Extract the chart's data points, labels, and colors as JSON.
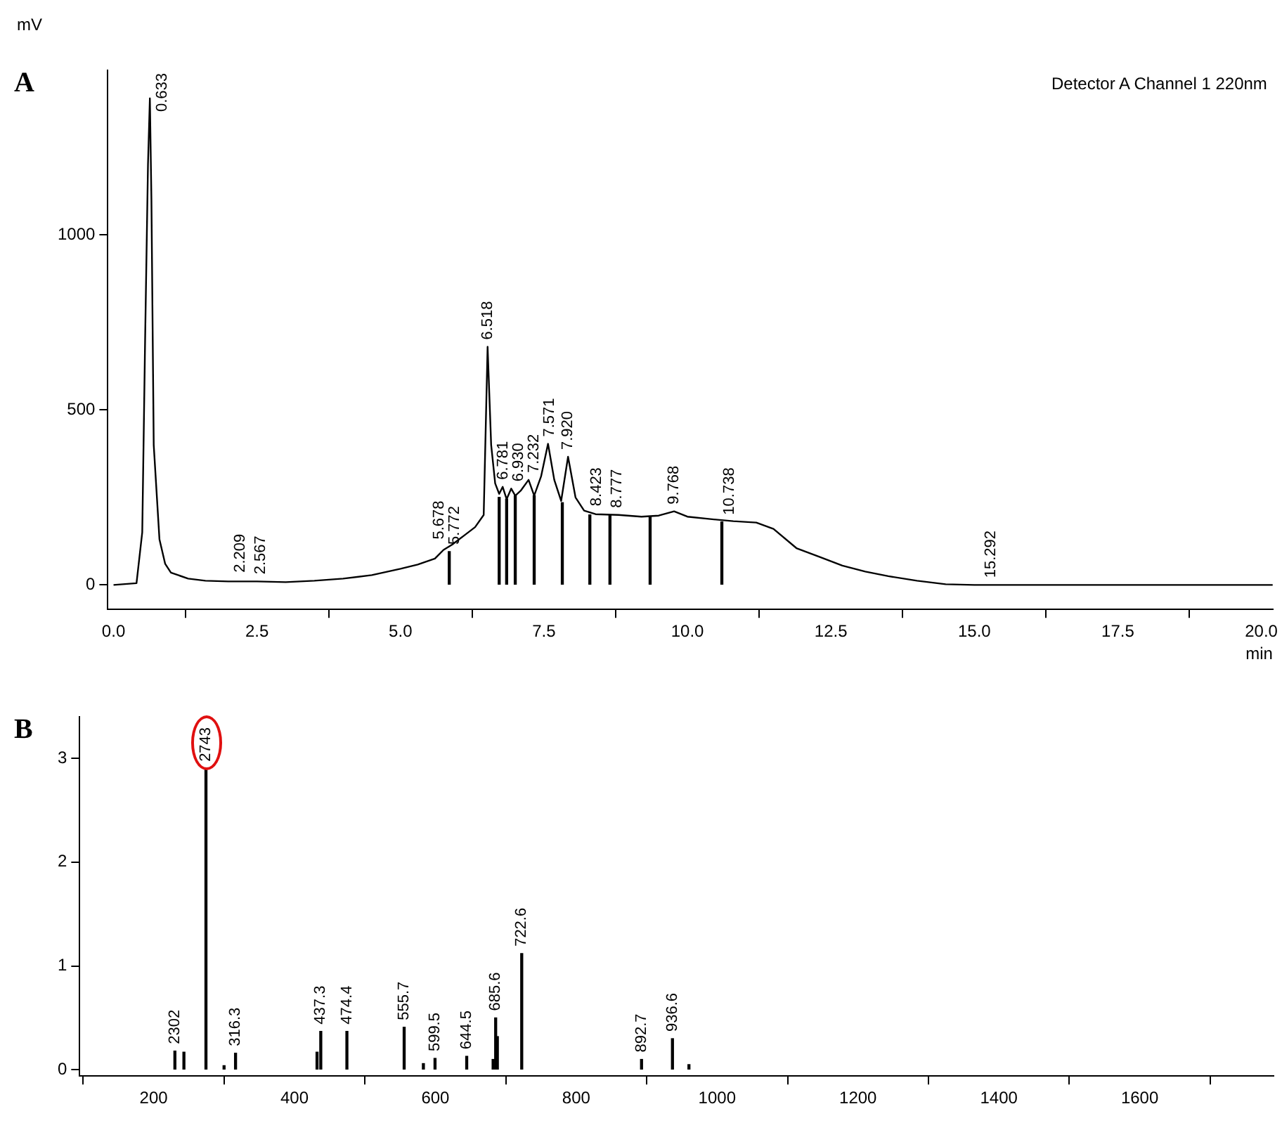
{
  "chart_data": [
    {
      "type": "line",
      "title": "A",
      "xlabel": "min",
      "ylabel": "mV",
      "xlim": [
        -0.1,
        20.2
      ],
      "ylim": [
        -70,
        1470
      ],
      "xticks": [
        {
          "value": 0,
          "label": "0.0"
        },
        {
          "value": 2.5,
          "label": "2.5"
        },
        {
          "value": 5,
          "label": "5.0"
        },
        {
          "value": 7.5,
          "label": "7.5"
        },
        {
          "value": 10,
          "label": "10.0"
        },
        {
          "value": 12.5,
          "label": "12.5"
        },
        {
          "value": 15,
          "label": "15.0"
        },
        {
          "value": 17.5,
          "label": "17.5"
        },
        {
          "value": 20,
          "label": "20.0"
        }
      ],
      "yticks": [
        0,
        500,
        1000
      ],
      "grid": false,
      "legend": false,
      "marker": "none",
      "series": [
        {
          "color": "#000000",
          "x": [
            0,
            0.4,
            0.5,
            0.55,
            0.6,
            0.633,
            0.66,
            0.7,
            0.8,
            0.9,
            1.0,
            1.3,
            1.6,
            2.0,
            2.5,
            3.0,
            3.5,
            4.0,
            4.5,
            5.0,
            5.3,
            5.6,
            5.75,
            5.9,
            6.1,
            6.3,
            6.45,
            6.518,
            6.58,
            6.65,
            6.72,
            6.781,
            6.85,
            6.93,
            7.0,
            7.1,
            7.232,
            7.33,
            7.45,
            7.571,
            7.68,
            7.8,
            7.92,
            8.05,
            8.2,
            8.4,
            8.8,
            9.2,
            9.5,
            9.768,
            10.0,
            10.4,
            10.8,
            11.2,
            11.5,
            11.9,
            12.3,
            12.7,
            13.1,
            13.5,
            14.0,
            14.5,
            15.0,
            16,
            17,
            18,
            19,
            20.2
          ],
          "values": [
            0,
            5,
            150,
            700,
            1200,
            1390,
            1100,
            400,
            130,
            60,
            35,
            18,
            12,
            10,
            10,
            8,
            12,
            18,
            28,
            46,
            58,
            75,
            100,
            115,
            140,
            165,
            200,
            680,
            400,
            290,
            260,
            280,
            245,
            275,
            255,
            270,
            300,
            255,
            310,
            403,
            300,
            240,
            366,
            250,
            212,
            202,
            200,
            195,
            198,
            210,
            195,
            188,
            182,
            178,
            160,
            105,
            80,
            55,
            38,
            25,
            12,
            2,
            0,
            0,
            0,
            0,
            0,
            0
          ]
        },
        {
          "type": "bar",
          "color": "#000000",
          "x": [
            5.85,
            6.72,
            6.85,
            7.0,
            7.33,
            7.82,
            8.3,
            8.65,
            9.35,
            10.6
          ],
          "values": [
            95,
            250,
            245,
            255,
            255,
            235,
            200,
            198,
            195,
            180
          ]
        }
      ],
      "annotations": [
        "Detector A Channel 1 220nm",
        {
          "text": "0.633",
          "x": 0.633,
          "y": 1390
        },
        {
          "text": "2.209",
          "x": 2.209,
          "y": 15
        },
        {
          "text": "2.567",
          "x": 2.567,
          "y": 10
        },
        {
          "text": "5.678",
          "x": 5.678,
          "y": 110
        },
        {
          "text": "5.772",
          "x": 5.772,
          "y": 95
        },
        {
          "text": "6.518",
          "x": 6.518,
          "y": 680
        },
        {
          "text": "6.781",
          "x": 6.781,
          "y": 280
        },
        {
          "text": "6.930",
          "x": 6.93,
          "y": 275
        },
        {
          "text": "7.232",
          "x": 7.232,
          "y": 300
        },
        {
          "text": "7.571",
          "x": 7.571,
          "y": 403
        },
        {
          "text": "7.920",
          "x": 7.92,
          "y": 366
        },
        {
          "text": "8.423",
          "x": 8.423,
          "y": 205
        },
        {
          "text": "8.777",
          "x": 8.777,
          "y": 200
        },
        {
          "text": "9.768",
          "x": 9.768,
          "y": 210
        },
        {
          "text": "10.738",
          "x": 10.738,
          "y": 180
        },
        {
          "text": "15.292",
          "x": 15.292,
          "y": 0
        }
      ]
    },
    {
      "type": "bar",
      "title": "B",
      "xlim": [
        95,
        1790
      ],
      "ylim": [
        -0.06,
        3.4
      ],
      "xticks": [
        200,
        400,
        600,
        800,
        1000,
        1200,
        1400,
        1600
      ],
      "yticks": [
        0,
        1,
        2,
        3
      ],
      "grid": false,
      "legend": false,
      "series": [
        {
          "color": "#000000",
          "x": [
            230.2,
            243,
            274.3,
            300,
            316.3,
            432,
            437.3,
            474.4,
            555.7,
            583,
            599.5,
            644.5,
            682,
            685.6,
            688,
            722.6,
            892.7,
            936.6,
            960
          ],
          "values": [
            0.18,
            0.17,
            2.9,
            0.04,
            0.16,
            0.17,
            0.37,
            0.37,
            0.41,
            0.06,
            0.11,
            0.13,
            0.1,
            0.5,
            0.32,
            1.12,
            0.1,
            0.3,
            0.05
          ]
        }
      ],
      "annotations": [
        {
          "text": "2302",
          "x": 230.2,
          "y": 0.18
        },
        {
          "text": "2743",
          "x": 274.3,
          "y": 2.9
        },
        {
          "text": "316.3",
          "x": 316.3,
          "y": 0.16
        },
        {
          "text": "437.3",
          "x": 437.3,
          "y": 0.37
        },
        {
          "text": "474.4",
          "x": 474.4,
          "y": 0.37
        },
        {
          "text": "555.7",
          "x": 555.7,
          "y": 0.41
        },
        {
          "text": "599.5",
          "x": 599.5,
          "y": 0.11
        },
        {
          "text": "644.5",
          "x": 644.5,
          "y": 0.13
        },
        {
          "text": "685.6",
          "x": 685.6,
          "y": 0.5
        },
        {
          "text": "722.6",
          "x": 722.6,
          "y": 1.12
        },
        {
          "text": "892.7",
          "x": 892.7,
          "y": 0.1
        },
        {
          "text": "936.6",
          "x": 936.6,
          "y": 0.3
        }
      ]
    }
  ]
}
